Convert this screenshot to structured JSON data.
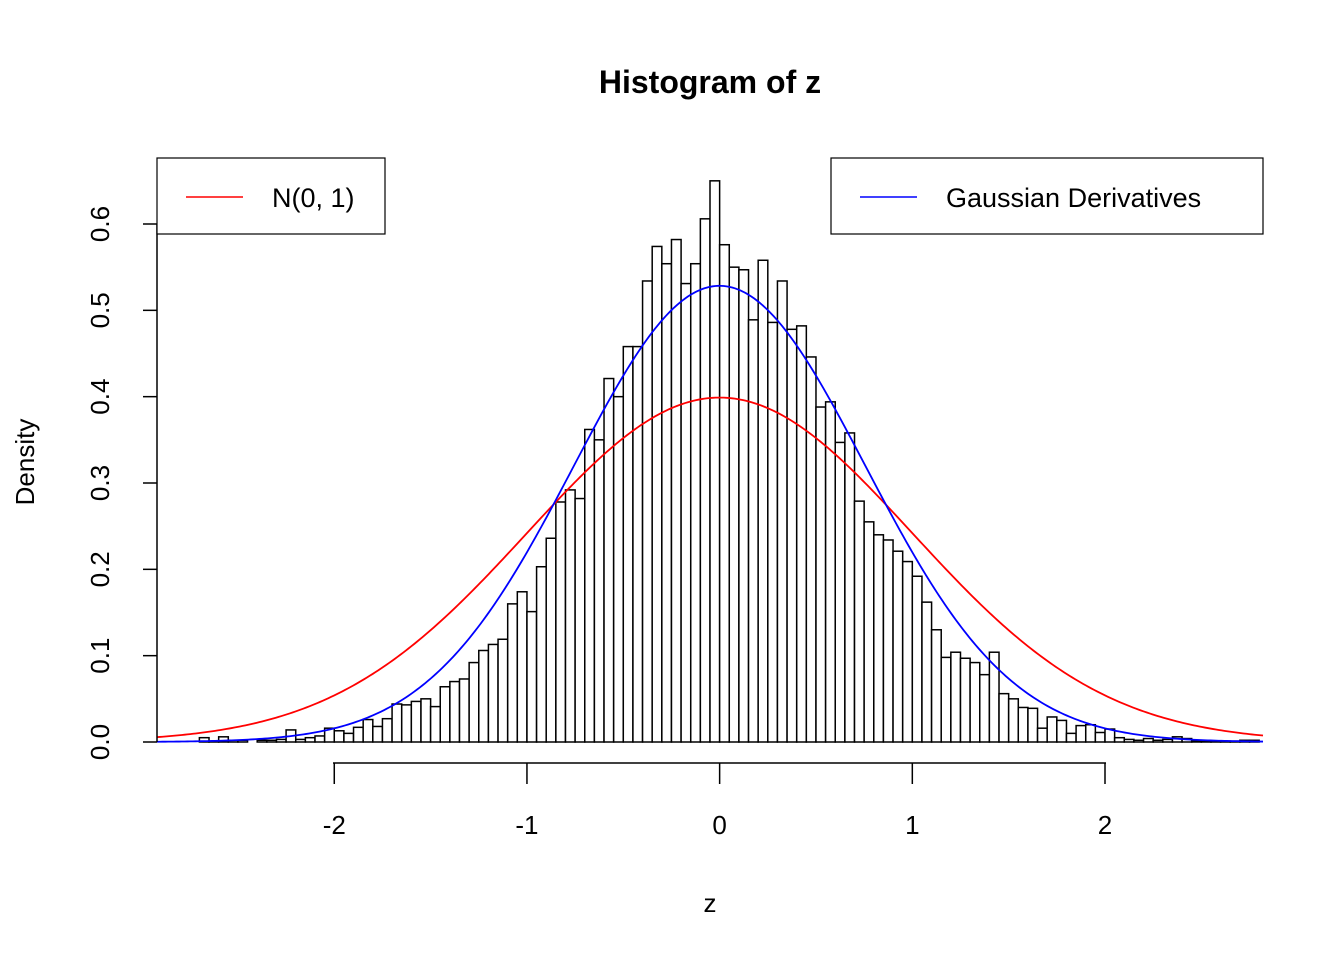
{
  "chart_data": {
    "type": "bar",
    "title": "Histogram of z",
    "xlabel": "z",
    "ylabel": "Density",
    "xlim": [
      -2.92,
      2.82
    ],
    "ylim": [
      0,
      0.65
    ],
    "x_ticks": [
      -2,
      -1,
      0,
      1,
      2
    ],
    "x_tick_labels": [
      "-2",
      "-1",
      "0",
      "1",
      "2"
    ],
    "y_ticks": [
      0,
      0.1,
      0.2,
      0.3,
      0.4,
      0.5,
      0.6
    ],
    "y_tick_labels": [
      "0.0",
      "0.1",
      "0.2",
      "0.3",
      "0.4",
      "0.5",
      "0.6"
    ],
    "bin_start": -2.7,
    "bin_width": 0.05,
    "values": [
      0.005,
      0.001,
      0.006,
      0.002,
      0.002,
      0.0,
      0.002,
      0.002,
      0.003,
      0.014,
      0.003,
      0.005,
      0.007,
      0.016,
      0.013,
      0.01,
      0.017,
      0.026,
      0.018,
      0.027,
      0.044,
      0.043,
      0.047,
      0.05,
      0.041,
      0.064,
      0.07,
      0.073,
      0.092,
      0.106,
      0.113,
      0.119,
      0.16,
      0.174,
      0.151,
      0.203,
      0.236,
      0.278,
      0.292,
      0.282,
      0.362,
      0.35,
      0.421,
      0.4,
      0.458,
      0.458,
      0.534,
      0.574,
      0.554,
      0.582,
      0.531,
      0.554,
      0.606,
      0.65,
      0.576,
      0.55,
      0.547,
      0.489,
      0.558,
      0.486,
      0.534,
      0.478,
      0.482,
      0.446,
      0.388,
      0.394,
      0.347,
      0.358,
      0.279,
      0.255,
      0.24,
      0.234,
      0.221,
      0.209,
      0.192,
      0.162,
      0.13,
      0.098,
      0.104,
      0.097,
      0.092,
      0.078,
      0.104,
      0.056,
      0.05,
      0.04,
      0.039,
      0.016,
      0.029,
      0.025,
      0.01,
      0.019,
      0.02,
      0.011,
      0.015,
      0.005,
      0.003,
      0.002,
      0.004,
      0.002,
      0.003,
      0.006,
      0.004,
      0.001,
      0.001,
      0.001,
      0.001,
      0.001,
      0.002,
      0.002
    ],
    "curves": [
      {
        "name": "N(0, 1)",
        "color": "#ff0000",
        "function": "normal",
        "mean": 0,
        "sd": 1
      },
      {
        "name": "Gaussian Derivatives",
        "color": "#0000ff",
        "function": "normal",
        "mean": 0,
        "sd": 0.755
      }
    ],
    "legends": [
      {
        "position": "top-left",
        "entries": [
          {
            "label": "N(0, 1)",
            "color": "#ff0000"
          }
        ]
      },
      {
        "position": "top-right",
        "entries": [
          {
            "label": "Gaussian Derivatives",
            "color": "#0000ff"
          }
        ]
      }
    ],
    "grid": false,
    "bar_fill": "#ffffff",
    "bar_stroke": "#000000"
  }
}
